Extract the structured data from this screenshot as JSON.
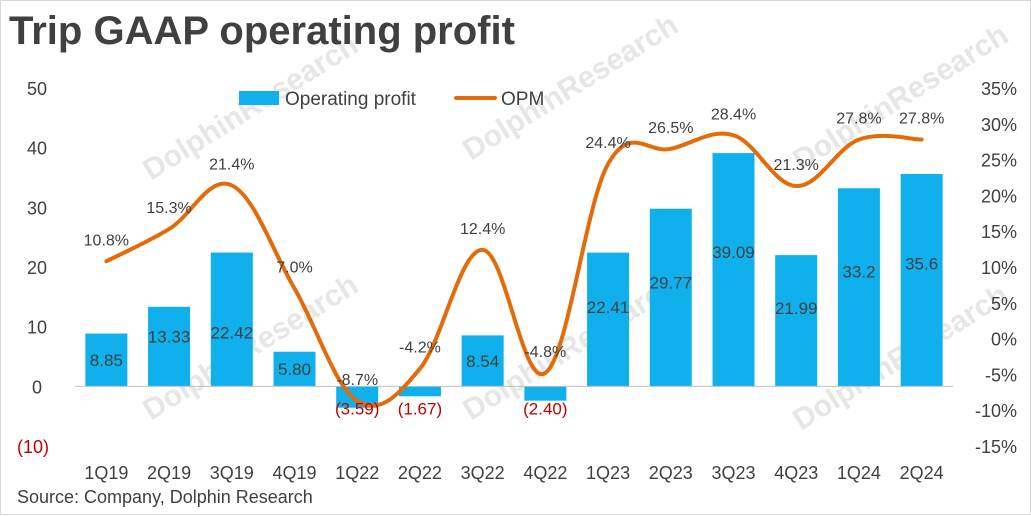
{
  "title": "Trip GAAP operating profit",
  "source": "Source: Company, Dolphin Research",
  "colors": {
    "bar": "#0fb0ec",
    "line": "#e36c0a",
    "negative_label": "#c00000",
    "text": "#404040"
  },
  "chart_data": {
    "type": "bar",
    "categories": [
      "1Q19",
      "2Q19",
      "3Q19",
      "4Q19",
      "1Q22",
      "2Q22",
      "3Q22",
      "4Q22",
      "1Q23",
      "2Q23",
      "3Q23",
      "4Q23",
      "1Q24",
      "2Q24"
    ],
    "series": [
      {
        "name": "Operating profit",
        "type": "bar",
        "axis": "left",
        "values": [
          8.85,
          13.33,
          22.42,
          5.8,
          -3.59,
          -1.67,
          8.54,
          -2.4,
          22.41,
          29.77,
          39.09,
          21.99,
          33.2,
          35.6
        ],
        "labels": [
          "8.85",
          "13.33",
          "22.42",
          "5.80",
          "(3.59)",
          "(1.67)",
          "8.54",
          "(2.40)",
          "22.41",
          "29.77",
          "39.09",
          "21.99",
          "33.2",
          "35.6"
        ]
      },
      {
        "name": "OPM",
        "type": "line",
        "axis": "right",
        "values": [
          10.8,
          15.3,
          21.4,
          7.0,
          -8.7,
          -4.2,
          12.4,
          -4.8,
          24.4,
          26.5,
          28.4,
          21.3,
          27.8,
          27.8
        ],
        "labels": [
          "10.8%",
          "15.3%",
          "21.4%",
          "7.0%",
          "-8.7%",
          "-4.2%",
          "12.4%",
          "-4.8%",
          "24.4%",
          "26.5%",
          "28.4%",
          "21.3%",
          "27.8%",
          "27.8%"
        ]
      }
    ],
    "y_left": {
      "ticks": [
        "50",
        "40",
        "30",
        "20",
        "10",
        "0",
        "(10)"
      ],
      "values": [
        50,
        40,
        30,
        20,
        10,
        0,
        -10
      ],
      "ylim": [
        -10,
        50
      ]
    },
    "y_right": {
      "ticks": [
        "35%",
        "30%",
        "25%",
        "20%",
        "15%",
        "10%",
        "5%",
        "0%",
        "-5%",
        "-10%",
        "-15%"
      ],
      "values": [
        35,
        30,
        25,
        20,
        15,
        10,
        5,
        0,
        -5,
        -10,
        -15
      ],
      "ylim": [
        -15,
        35
      ]
    },
    "legend": {
      "position": "top",
      "entries": [
        "Operating profit",
        "OPM"
      ]
    },
    "grid": false
  }
}
